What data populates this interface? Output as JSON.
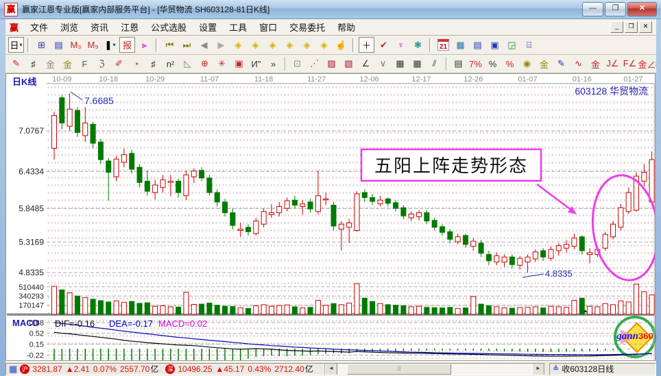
{
  "window": {
    "title": "赢家江恩专业版[赢家内部服务平台] - [华贸物流  SH603128-81日K线]",
    "logo_char": "赢",
    "controls": {
      "minimize": "—",
      "maximize": "❐",
      "close": "✕"
    }
  },
  "menu": {
    "logo_char": "赢",
    "items": [
      "文件",
      "浏览",
      "资讯",
      "江恩",
      "公式选股",
      "设置",
      "工具",
      "窗口",
      "交易委托",
      "帮助"
    ],
    "child_controls": [
      "_",
      "❐",
      "✕"
    ]
  },
  "toolbar_row1": [
    {
      "name": "kline-period-button",
      "glyph": "日",
      "fg": "#000",
      "boxed": true,
      "caret": true
    },
    {
      "sep": true
    },
    {
      "name": "overlay-window-icon",
      "glyph": "⊞",
      "fg": "#2233bb"
    },
    {
      "name": "info-list-icon",
      "glyph": "▤",
      "fg": "#2233bb"
    },
    {
      "name": "ma3-chart-icon",
      "glyph": "M₃",
      "fg": "#c22"
    },
    {
      "name": "ma9-chart-icon",
      "glyph": "M₉",
      "fg": "#c22"
    },
    {
      "name": "candle-style-dropdown",
      "glyph": "❚",
      "fg": "#000",
      "caret": true
    },
    {
      "name": "report-icon",
      "glyph": "报",
      "fg": "#c22",
      "boxed": true
    },
    {
      "name": "color-bars-icon",
      "glyph": "⫸",
      "fg": "#c0c"
    },
    {
      "sep": true
    },
    {
      "name": "first-page-icon",
      "glyph": "⏮",
      "fg": "#7a7a00"
    },
    {
      "name": "last-page-icon",
      "glyph": "⏭",
      "fg": "#7a7a00"
    },
    {
      "name": "prev-page-icon",
      "glyph": "◀",
      "fg": "#8a8a8a"
    },
    {
      "name": "next-page-icon",
      "glyph": "▶",
      "fg": "#aaa"
    },
    {
      "name": "zoom-out-x-icon",
      "glyph": "◈",
      "fg": "#d4b400"
    },
    {
      "name": "zoom-in-x-icon",
      "glyph": "◈",
      "fg": "#d4b400"
    },
    {
      "name": "expand-x-icon",
      "glyph": "◈",
      "fg": "#d4b400"
    },
    {
      "name": "compress-x-icon",
      "glyph": "◈",
      "fg": "#d4b400"
    },
    {
      "name": "expand-all-icon",
      "glyph": "◈",
      "fg": "#d4b400"
    },
    {
      "name": "compress-all-icon",
      "glyph": "◈",
      "fg": "#d4b400"
    },
    {
      "name": "hand-tool-icon",
      "glyph": "☝",
      "fg": "#555"
    },
    {
      "sep": true
    },
    {
      "name": "crosshair-icon",
      "glyph": "＋",
      "fg": "#000",
      "boxed": true
    },
    {
      "name": "measure-tool-icon",
      "glyph": "✔",
      "fg": "#c22"
    },
    {
      "name": "gann-node-icon",
      "glyph": "♆",
      "fg": "#a2a"
    },
    {
      "name": "brain-icon",
      "glyph": "❃",
      "fg": "#188"
    },
    {
      "sep": true
    },
    {
      "name": "calendar-icon",
      "glyph": "21",
      "fg": "#c00",
      "cal": true
    },
    {
      "name": "calculator-icon",
      "glyph": "▦",
      "fg": "#27a"
    },
    {
      "name": "report-list-icon",
      "glyph": "▤",
      "fg": "#23b"
    },
    {
      "name": "save-icon",
      "glyph": "▣",
      "fg": "#23b"
    },
    {
      "name": "save-net-icon",
      "glyph": "◲",
      "fg": "#283"
    },
    {
      "name": "printer-icon",
      "glyph": "⌸",
      "fg": "#23b"
    }
  ],
  "toolbar_row2": [
    {
      "name": "draw-pencil-icon",
      "glyph": "✎",
      "fg": "#c22"
    },
    {
      "name": "grid-tool-icon",
      "glyph": "♯",
      "fg": "#333"
    },
    {
      "name": "golden-grid-icon",
      "glyph": "金",
      "fg": "#987"
    },
    {
      "name": "golden-grid2-icon",
      "glyph": "金",
      "fg": "#980"
    },
    {
      "name": "f-grid-icon",
      "glyph": "F",
      "fg": "#555"
    },
    {
      "name": "spiral-icon",
      "glyph": "ℨ",
      "fg": "#555"
    },
    {
      "name": "ruler-pencil-icon",
      "glyph": "✐",
      "fg": "#c22"
    },
    {
      "name": "clock-circle-icon",
      "glyph": "◔",
      "fg": "#555"
    },
    {
      "name": "dense-grid-icon",
      "glyph": "♯",
      "fg": "#333"
    },
    {
      "name": "n2-icon",
      "glyph": "n²",
      "fg": "#333"
    },
    {
      "name": "angle-ruler-icon",
      "glyph": "◺",
      "fg": "#777"
    },
    {
      "name": "circle-cross-icon",
      "glyph": "⊕",
      "fg": "#c22"
    },
    {
      "name": "starburst-icon",
      "glyph": "✳",
      "fg": "#c22"
    },
    {
      "name": "box-pattern-icon",
      "glyph": "▣",
      "fg": "#c22"
    },
    {
      "name": "wave-mark-icon",
      "glyph": "И\"",
      "fg": "#333"
    },
    {
      "name": "more-tools-button",
      "glyph": "»",
      "fg": "#333"
    },
    {
      "sep": true
    },
    {
      "name": "frame-tool-icon",
      "glyph": "⊡",
      "fg": "#888"
    },
    {
      "name": "fan-lines-icon",
      "glyph": "⋰",
      "fg": "#a13"
    },
    {
      "name": "shaded-box-icon",
      "glyph": "▨",
      "fg": "#a13"
    },
    {
      "name": "shaded-box2-icon",
      "glyph": "▧",
      "fg": "#a13"
    },
    {
      "name": "trend-lines-icon",
      "glyph": "∠",
      "fg": "#333"
    },
    {
      "name": "v-dots-icon",
      "glyph": "∨",
      "fg": "#777"
    },
    {
      "name": "grid-box-icon",
      "glyph": "▦",
      "fg": "#333"
    },
    {
      "name": "grid-box2-icon",
      "glyph": "▦",
      "fg": "#333"
    },
    {
      "name": "parallel-lines-icon",
      "glyph": "⫽",
      "fg": "#333"
    },
    {
      "sep": true
    },
    {
      "name": "stats-table-icon",
      "glyph": "▤",
      "fg": "#333"
    },
    {
      "name": "percent-strike-icon",
      "glyph": "7%",
      "fg": "#c22"
    },
    {
      "name": "percent-icon",
      "glyph": "%",
      "fg": "#333"
    },
    {
      "name": "percent-line-icon",
      "glyph": "%",
      "fg": "#c22"
    },
    {
      "name": "gold-circle-icon",
      "glyph": "◉",
      "fg": "#980"
    },
    {
      "name": "gold-three-icon",
      "glyph": "金",
      "fg": "#980"
    },
    {
      "name": "blue-pen-icon",
      "glyph": "✎",
      "fg": "#23b"
    },
    {
      "name": "wave-av-icon",
      "glyph": "∿",
      "fg": "#c22"
    },
    {
      "name": "gold-line-icon",
      "glyph": "金",
      "fg": "#c22"
    },
    {
      "name": "j-angle-icon",
      "glyph": "J∠",
      "fg": "#c22"
    },
    {
      "name": "f-angle-icon",
      "glyph": "F∠",
      "fg": "#c22"
    },
    {
      "name": "gold-angle-icon",
      "glyph": "金∠",
      "fg": "#c22"
    },
    {
      "name": "shen-angle-icon",
      "glyph": "神∠",
      "fg": "#c22"
    },
    {
      "name": "jin-angle-icon",
      "glyph": "进∠",
      "fg": "#c22"
    },
    {
      "name": "si-angle-icon",
      "glyph": "四∠",
      "fg": "#c22"
    }
  ],
  "chart": {
    "panel_label": "日K线",
    "stock_label": "603128  华贸物流",
    "price_axis": [
      "7.0767",
      "6.4334",
      "5.8485",
      "5.3169",
      "4.8335"
    ],
    "volume_axis": [
      "510440",
      "340293",
      "170147"
    ],
    "high_annotation": "7.6685",
    "low_annotation": "4.8335",
    "pattern_annotation": "五阳上阵走势形态",
    "macd": {
      "label": "MACD",
      "dif_label": "DIF=-0.16",
      "dea_label": "DEA=-0.17",
      "macd_label": "MACD=0.02",
      "axis": [
        "0.88",
        "0.52",
        "0.15",
        "-0.22"
      ]
    }
  },
  "chart_data": {
    "type": "candlestick",
    "title": "华贸物流 SH603128 日K线",
    "price_gridlines": [
      7.0767,
      6.4334,
      5.8485,
      5.3169,
      4.8335
    ],
    "volume_gridlines": [
      510440,
      340293,
      170147
    ],
    "macd_gridlines": [
      0.88,
      0.52,
      0.15,
      -0.22
    ],
    "high_point": 7.6685,
    "low_point": 4.8335,
    "date_ticks": [
      {
        "label": "10-09",
        "i": 1.0
      },
      {
        "label": "10-18",
        "i": 7.0
      },
      {
        "label": "10-29",
        "i": 13.0
      },
      {
        "label": "11-07",
        "i": 20.0
      },
      {
        "label": "11-18",
        "i": 27.0
      },
      {
        "label": "11-27",
        "i": 33.8
      },
      {
        "label": "12-06",
        "i": 40.6
      },
      {
        "label": "12-17",
        "i": 47.3
      },
      {
        "label": "12-26",
        "i": 54.0
      },
      {
        "label": "01-07",
        "i": 61.0
      },
      {
        "label": "01-16",
        "i": 68.0
      },
      {
        "label": "01-27",
        "i": 74.6
      }
    ],
    "candles": [
      [
        6.8,
        7.38,
        6.62,
        7.32,
        520
      ],
      [
        7.6,
        7.64,
        7.1,
        7.2,
        455
      ],
      [
        7.15,
        7.6685,
        7.08,
        7.42,
        400
      ],
      [
        7.4,
        7.45,
        6.98,
        7.05,
        340
      ],
      [
        7.0,
        7.45,
        6.9,
        7.2,
        310
      ],
      [
        7.18,
        7.22,
        6.8,
        6.88,
        280
      ],
      [
        6.9,
        6.95,
        6.55,
        6.62,
        255
      ],
      [
        6.6,
        6.65,
        5.97,
        6.42,
        230
      ],
      [
        6.35,
        6.68,
        6.28,
        6.63,
        250
      ],
      [
        6.58,
        6.8,
        6.5,
        6.7,
        225
      ],
      [
        6.72,
        6.78,
        6.4,
        6.47,
        240
      ],
      [
        6.5,
        6.55,
        6.18,
        6.26,
        205
      ],
      [
        6.28,
        6.45,
        6.05,
        6.12,
        215
      ],
      [
        6.1,
        6.3,
        5.99,
        6.22,
        150
      ],
      [
        6.18,
        6.38,
        6.1,
        6.3,
        160
      ],
      [
        6.26,
        6.38,
        6.04,
        6.28,
        140
      ],
      [
        6.28,
        6.32,
        6.02,
        6.1,
        135
      ],
      [
        6.05,
        6.45,
        5.98,
        6.38,
        410
      ],
      [
        6.35,
        6.48,
        6.25,
        6.44,
        185
      ],
      [
        6.45,
        6.5,
        6.28,
        6.33,
        190
      ],
      [
        6.33,
        6.38,
        6.05,
        6.1,
        210
      ],
      [
        6.1,
        6.15,
        5.88,
        5.95,
        170
      ],
      [
        5.95,
        6.0,
        5.72,
        5.78,
        150
      ],
      [
        5.78,
        5.85,
        5.52,
        5.58,
        145
      ],
      [
        5.5,
        5.62,
        5.4,
        5.52,
        120
      ],
      [
        5.55,
        5.6,
        5.42,
        5.48,
        110
      ],
      [
        5.45,
        5.7,
        5.42,
        5.65,
        160
      ],
      [
        5.6,
        5.85,
        5.55,
        5.8,
        180
      ],
      [
        5.75,
        5.92,
        5.7,
        5.78,
        150
      ],
      [
        5.78,
        5.95,
        5.72,
        5.88,
        165
      ],
      [
        5.85,
        6.02,
        5.8,
        5.97,
        175
      ],
      [
        5.98,
        6.05,
        5.85,
        5.9,
        140
      ],
      [
        5.88,
        5.98,
        5.75,
        5.92,
        120
      ],
      [
        5.95,
        6.0,
        5.78,
        5.84,
        130
      ],
      [
        5.8,
        6.45,
        5.75,
        6.05,
        260
      ],
      [
        6.0,
        6.1,
        5.9,
        6.0,
        170
      ],
      [
        5.9,
        5.95,
        5.5,
        5.57,
        200
      ],
      [
        5.52,
        5.65,
        5.18,
        5.6,
        180
      ],
      [
        5.55,
        5.68,
        5.3,
        5.62,
        210
      ],
      [
        5.5,
        6.12,
        5.48,
        6.08,
        570
      ],
      [
        6.1,
        6.15,
        5.95,
        6.02,
        300
      ],
      [
        6.02,
        6.08,
        5.9,
        5.96,
        240
      ],
      [
        5.92,
        6.05,
        5.88,
        5.98,
        200
      ],
      [
        6.0,
        6.02,
        5.88,
        5.93,
        180
      ],
      [
        5.94,
        5.98,
        5.8,
        5.85,
        170
      ],
      [
        5.86,
        5.9,
        5.68,
        5.73,
        160
      ],
      [
        5.7,
        5.8,
        5.65,
        5.76,
        140
      ],
      [
        5.72,
        5.82,
        5.66,
        5.78,
        150
      ],
      [
        5.78,
        5.82,
        5.6,
        5.65,
        130
      ],
      [
        5.66,
        5.7,
        5.5,
        5.55,
        125
      ],
      [
        5.56,
        5.6,
        5.42,
        5.47,
        120
      ],
      [
        5.48,
        5.52,
        5.3,
        5.36,
        130
      ],
      [
        5.32,
        5.45,
        5.28,
        5.4,
        110
      ],
      [
        5.42,
        5.45,
        5.22,
        5.28,
        120
      ],
      [
        5.25,
        5.38,
        5.18,
        5.33,
        330
      ],
      [
        5.3,
        5.35,
        5.08,
        5.14,
        190
      ],
      [
        5.12,
        5.18,
        4.95,
        5.02,
        160
      ],
      [
        5.0,
        5.15,
        4.95,
        5.1,
        140
      ],
      [
        5.0,
        5.12,
        4.92,
        5.08,
        120
      ],
      [
        5.08,
        5.12,
        4.9,
        4.96,
        115
      ],
      [
        4.95,
        5.1,
        4.88,
        5.06,
        125
      ],
      [
        5.0,
        5.12,
        4.8335,
        5.08,
        130
      ],
      [
        5.05,
        5.2,
        5.0,
        5.16,
        140
      ],
      [
        5.18,
        5.22,
        5.02,
        5.08,
        120
      ],
      [
        5.06,
        5.25,
        5.02,
        5.2,
        150
      ],
      [
        5.18,
        5.3,
        5.1,
        5.26,
        140
      ],
      [
        5.22,
        5.35,
        5.15,
        5.28,
        130
      ],
      [
        5.25,
        5.45,
        5.2,
        5.38,
        260
      ],
      [
        5.4,
        5.42,
        5.12,
        5.18,
        300
      ],
      [
        5.12,
        5.22,
        4.98,
        5.15,
        150
      ],
      [
        5.12,
        5.25,
        5.08,
        5.2,
        140
      ],
      [
        5.22,
        5.48,
        5.18,
        5.44,
        200
      ],
      [
        5.4,
        5.65,
        5.36,
        5.6,
        180
      ],
      [
        5.55,
        5.92,
        5.5,
        5.86,
        250
      ],
      [
        5.8,
        6.18,
        5.76,
        6.1,
        230
      ],
      [
        5.82,
        6.42,
        5.8,
        6.36,
        560
      ],
      [
        6.28,
        6.55,
        6.2,
        6.42,
        420
      ],
      [
        5.95,
        6.75,
        5.9,
        6.62,
        360
      ]
    ],
    "dif": [
      0.55,
      0.52,
      0.5,
      0.47,
      0.44,
      0.41,
      0.38,
      0.35,
      0.32,
      0.28,
      0.25,
      0.23,
      0.2,
      0.18,
      0.16,
      0.14,
      0.12,
      0.11,
      0.1,
      0.08,
      0.05,
      0.03,
      0.01,
      -0.01,
      -0.02,
      -0.01,
      0.0,
      -0.01,
      -0.02,
      -0.04,
      -0.06,
      -0.07,
      -0.08,
      -0.09,
      -0.08,
      -0.09,
      -0.1,
      -0.11,
      -0.12,
      -0.1,
      -0.11,
      -0.12,
      -0.13,
      -0.14,
      -0.145,
      -0.15,
      -0.155,
      -0.158,
      -0.162,
      -0.168,
      -0.173,
      -0.18,
      -0.185,
      -0.19,
      -0.193,
      -0.2,
      -0.21,
      -0.215,
      -0.22,
      -0.228,
      -0.235,
      -0.243,
      -0.248,
      -0.252,
      -0.255,
      -0.256,
      -0.255,
      -0.252,
      -0.25,
      -0.248,
      -0.243,
      -0.236,
      -0.228,
      -0.218,
      -0.207,
      -0.194,
      -0.178,
      -0.16
    ],
    "dea": [
      0.88,
      0.85,
      0.82,
      0.79,
      0.76,
      0.72,
      0.69,
      0.66,
      0.62,
      0.59,
      0.56,
      0.53,
      0.5,
      0.47,
      0.44,
      0.41,
      0.38,
      0.36,
      0.33,
      0.31,
      0.28,
      0.26,
      0.24,
      0.21,
      0.19,
      0.16,
      0.14,
      0.12,
      0.1,
      0.09,
      0.07,
      0.05,
      0.04,
      0.02,
      0.01,
      0.0,
      -0.02,
      -0.03,
      -0.04,
      -0.05,
      -0.06,
      -0.07,
      -0.08,
      -0.09,
      -0.1,
      -0.11,
      -0.12,
      -0.125,
      -0.13,
      -0.14,
      -0.145,
      -0.15,
      -0.155,
      -0.16,
      -0.162,
      -0.165,
      -0.17,
      -0.175,
      -0.178,
      -0.18,
      -0.185,
      -0.19,
      -0.193,
      -0.196,
      -0.198,
      -0.2,
      -0.202,
      -0.203,
      -0.204,
      -0.205,
      -0.205,
      -0.203,
      -0.2,
      -0.197,
      -0.192,
      -0.186,
      -0.178,
      -0.17
    ],
    "colors": {
      "up": "#cc0000",
      "down": "#007a00",
      "dif": "#000000",
      "dea": "#0000bb",
      "macd_text": "#dd00dd",
      "annotation": "#2233bb",
      "highlight": "#ee3bee",
      "grid": "#aaaaaa",
      "date": "#8a8a8a"
    }
  },
  "statusbar": {
    "sh_index": {
      "icon": "沪",
      "value": "3281.87",
      "change": "▲2.41",
      "pct": "0.07%",
      "amount": "2557.70",
      "unit": "亿"
    },
    "sz_index": {
      "icon": "深",
      "value": "10496.25",
      "change": "▲45.17",
      "pct": "0.43%",
      "amount": "2712.40",
      "unit": "亿"
    },
    "right_label": "收603128日线"
  },
  "logo": {
    "text1": "gann",
    "text2": "360"
  }
}
